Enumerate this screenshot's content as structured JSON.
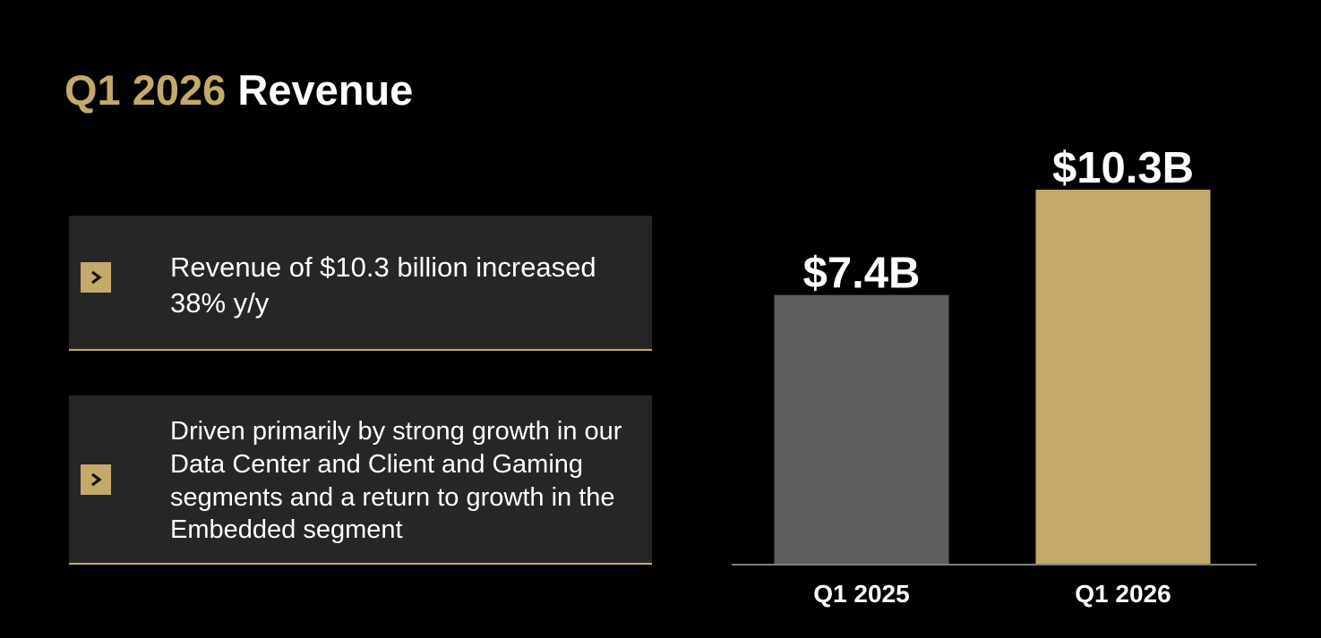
{
  "title": {
    "highlight": "Q1 2026",
    "rest": " Revenue"
  },
  "cards": [
    {
      "text": "Revenue of $10.3 billion increased 38% y/y"
    },
    {
      "text": "Driven primarily by strong growth in our Data Center and Client and Gaming segments and a return to growth in the Embedded segment"
    }
  ],
  "colors": {
    "accent": "#C4A96A",
    "prior_bar": "#5F5F5F",
    "card_bg": "#262626",
    "background": "#000000"
  },
  "chart_data": {
    "type": "bar",
    "categories": [
      "Q1 2025",
      "Q1 2026"
    ],
    "values": [
      7.4,
      10.3
    ],
    "value_labels": [
      "$7.4B",
      "$10.3B"
    ],
    "bar_colors": [
      "#5F5F5F",
      "#C4A96A"
    ],
    "title": "",
    "xlabel": "",
    "ylabel": "",
    "ylim": [
      0,
      10.3
    ],
    "grid": false
  }
}
